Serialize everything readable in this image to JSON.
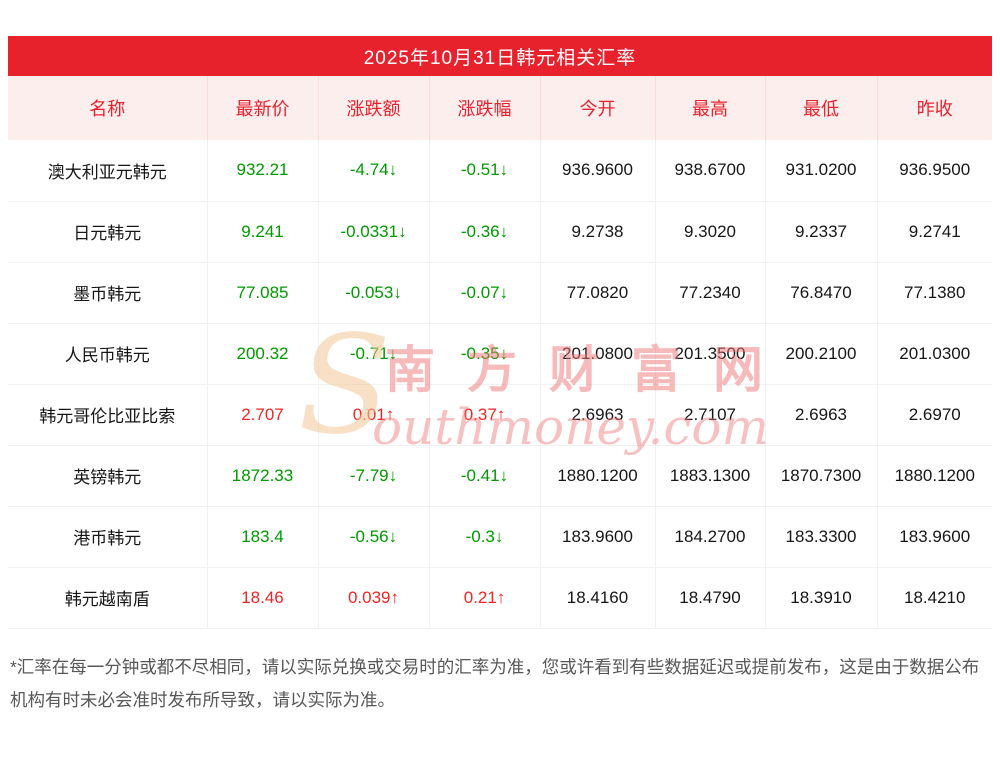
{
  "title": "2025年10月31日韩元相关汇率",
  "colors": {
    "title_bar_red": "#e8222d",
    "header_row_bg": "#fdeeee",
    "header_text_red": "#e8222d",
    "up_red": "#f42424",
    "down_green": "#009900"
  },
  "table": {
    "headers": [
      "名称",
      "最新价",
      "涨跌额",
      "涨跌幅",
      "今开",
      "最高",
      "最低",
      "昨收"
    ],
    "rows": [
      {
        "name": "澳大利亚元韩元",
        "price": "932.21",
        "change": "-4.74↓",
        "pct": "-0.51↓",
        "open": "936.9600",
        "high": "938.6700",
        "low": "931.0200",
        "prev": "936.9500",
        "trend": "down"
      },
      {
        "name": "日元韩元",
        "price": "9.241",
        "change": "-0.0331↓",
        "pct": "-0.36↓",
        "open": "9.2738",
        "high": "9.3020",
        "low": "9.2337",
        "prev": "9.2741",
        "trend": "down"
      },
      {
        "name": "墨币韩元",
        "price": "77.085",
        "change": "-0.053↓",
        "pct": "-0.07↓",
        "open": "77.0820",
        "high": "77.2340",
        "low": "76.8470",
        "prev": "77.1380",
        "trend": "down"
      },
      {
        "name": "人民币韩元",
        "price": "200.32",
        "change": "-0.71↓",
        "pct": "-0.35↓",
        "open": "201.0800",
        "high": "201.3500",
        "low": "200.2100",
        "prev": "201.0300",
        "trend": "down"
      },
      {
        "name": "韩元哥伦比亚比索",
        "price": "2.707",
        "change": "0.01↑",
        "pct": "0.37↑",
        "open": "2.6963",
        "high": "2.7107",
        "low": "2.6963",
        "prev": "2.6970",
        "trend": "up"
      },
      {
        "name": "英镑韩元",
        "price": "1872.33",
        "change": "-7.79↓",
        "pct": "-0.41↓",
        "open": "1880.1200",
        "high": "1883.1300",
        "low": "1870.7300",
        "prev": "1880.1200",
        "trend": "down"
      },
      {
        "name": "港币韩元",
        "price": "183.4",
        "change": "-0.56↓",
        "pct": "-0.3↓",
        "open": "183.9600",
        "high": "184.2700",
        "low": "183.3300",
        "prev": "183.9600",
        "trend": "down"
      },
      {
        "name": "韩元越南盾",
        "price": "18.46",
        "change": "0.039↑",
        "pct": "0.21↑",
        "open": "18.4160",
        "high": "18.4790",
        "low": "18.3910",
        "prev": "18.4210",
        "trend": "up"
      }
    ]
  },
  "watermark": {
    "big_s": "S",
    "chinese": "南方财富网",
    "english": "outhmoney.com"
  },
  "footnote": "*汇率在每一分钟或都不尽相同，请以实际兑换或交易时的汇率为准，您或许看到有些数据延迟或提前发布，这是由于数据公布机构有时未必会准时发布所导致，请以实际为准。"
}
